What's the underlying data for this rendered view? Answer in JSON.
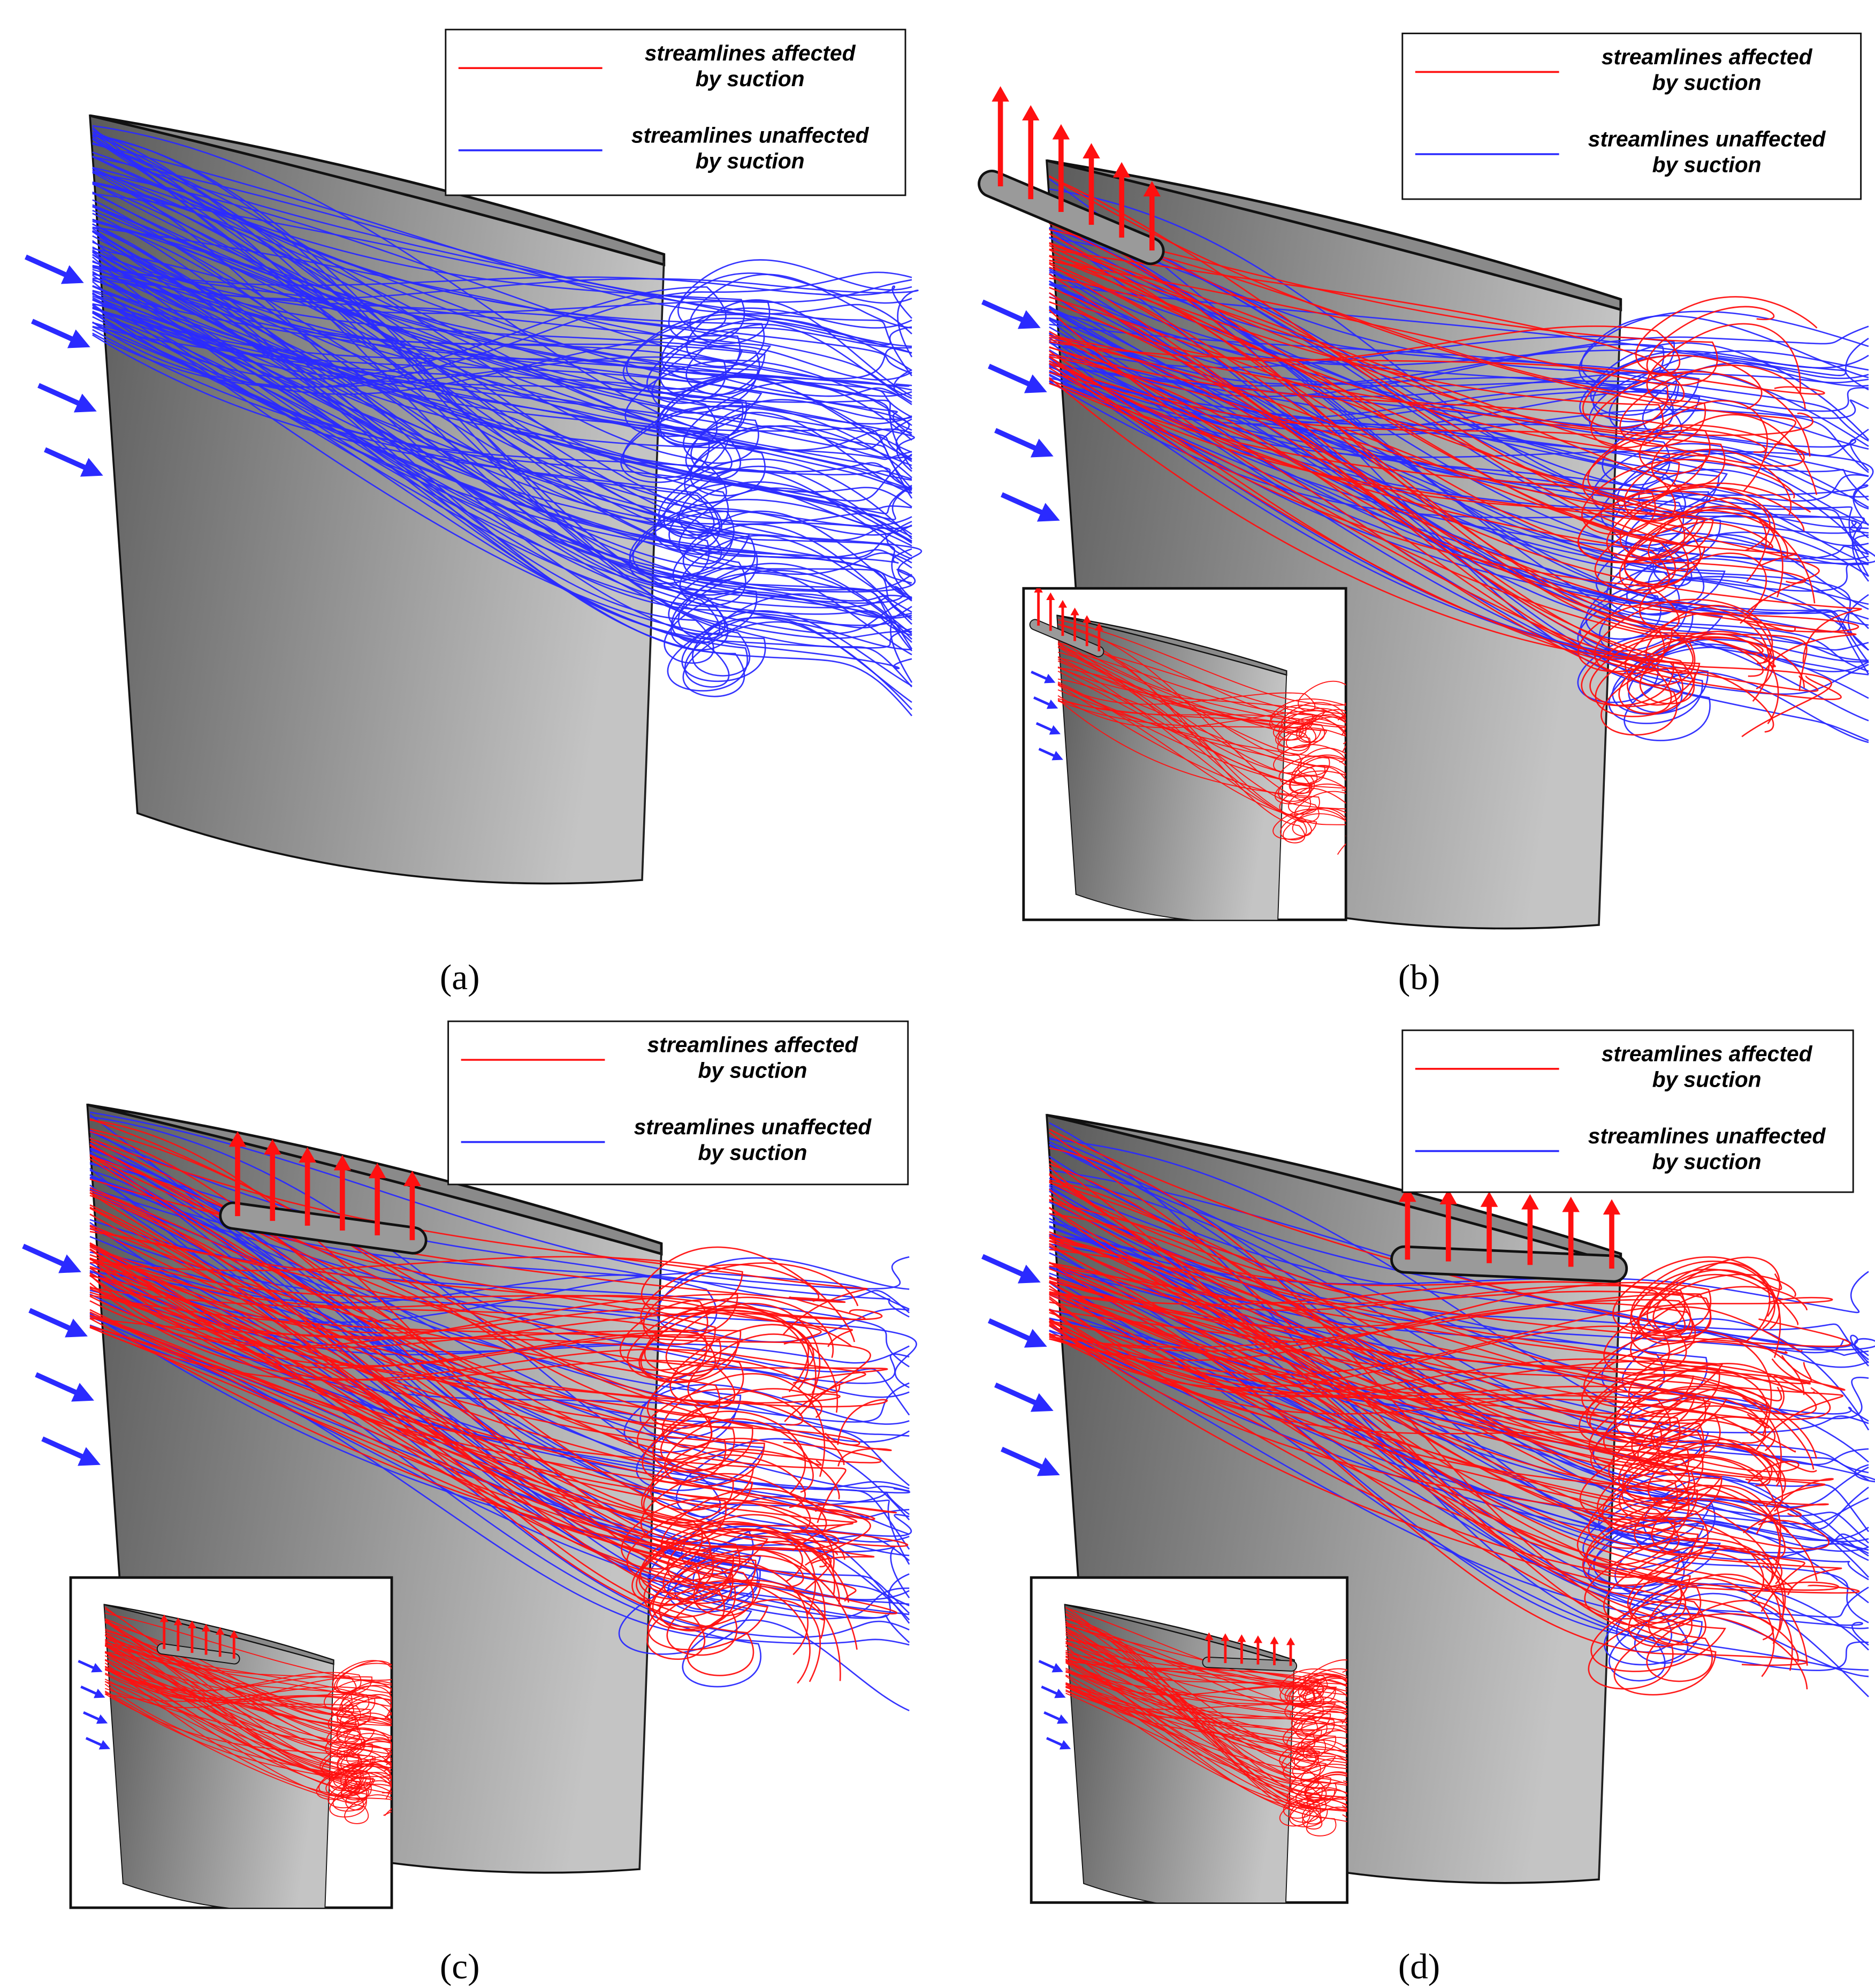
{
  "panels": [
    {
      "label": "(a)",
      "legend": [
        {
          "lines": [
            "streamlines affected",
            "by suction"
          ]
        },
        {
          "lines": [
            "streamlines unaffected",
            "by suction"
          ]
        }
      ]
    },
    {
      "label": "(b)",
      "legend": [
        {
          "lines": [
            "streamlines affected",
            "by suction"
          ]
        },
        {
          "lines": [
            "streamlines unaffected",
            "by suction"
          ]
        }
      ]
    },
    {
      "label": "(c)",
      "legend": [
        {
          "lines": [
            "streamlines affected",
            "by suction"
          ]
        },
        {
          "lines": [
            "streamlines unaffected",
            "by suction"
          ]
        }
      ]
    },
    {
      "label": "(d)",
      "legend": [
        {
          "lines": [
            "streamlines affected",
            "by suction"
          ]
        },
        {
          "lines": [
            "streamlines unaffected",
            "by suction"
          ]
        }
      ]
    }
  ]
}
